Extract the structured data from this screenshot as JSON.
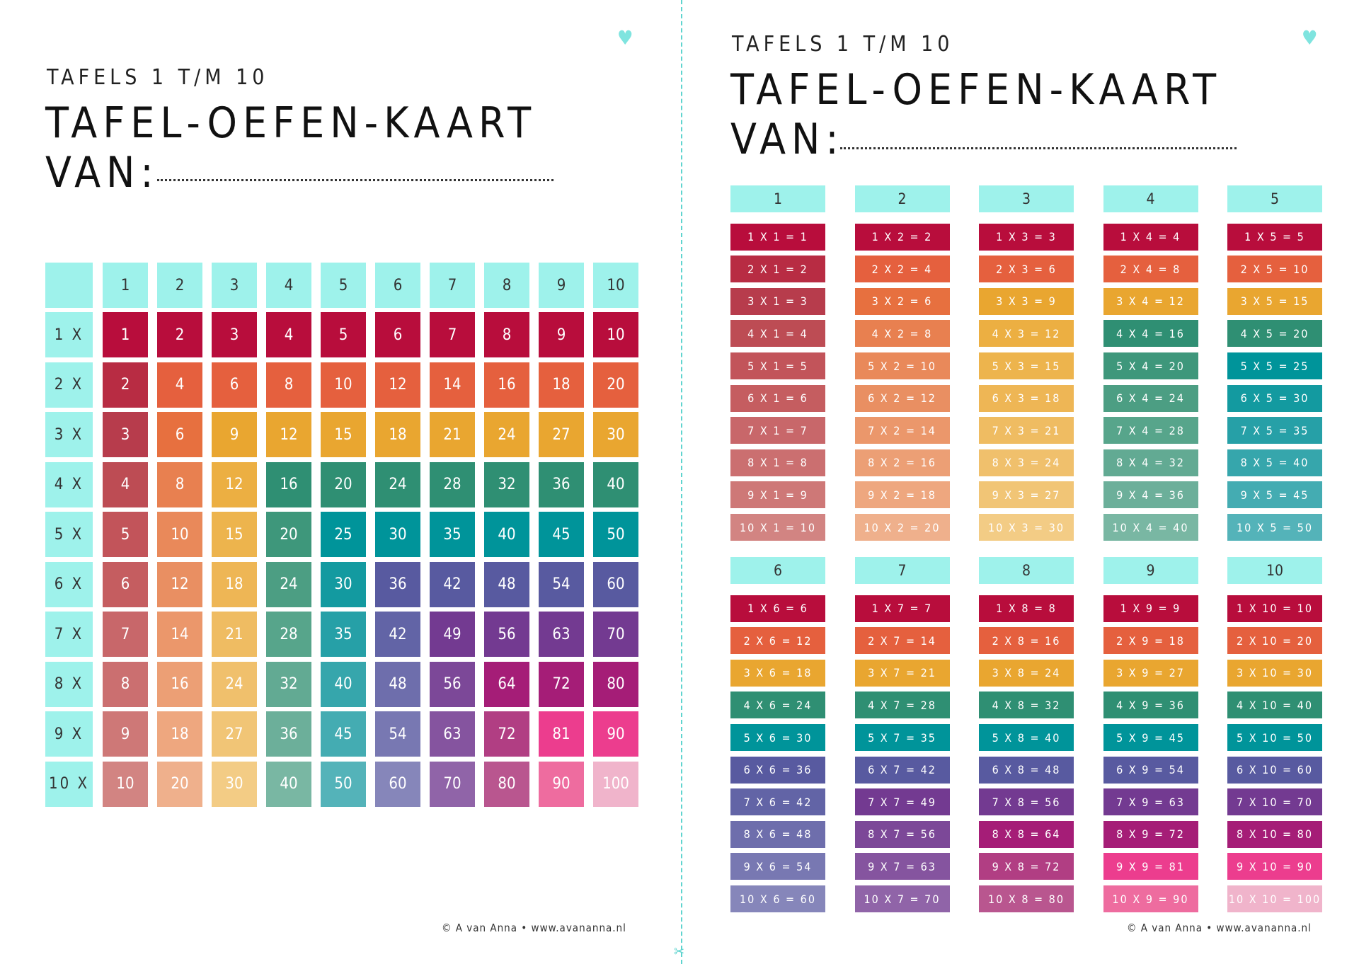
{
  "left": {
    "subtitle": "TAFELS 1 T/M 10",
    "title_line1": "TAFEL-OEFEN-KAART",
    "title_line2": "VAN:",
    "footer": "© A van Anna • www.avananna.nl",
    "icons": {
      "heart": "heart-icon"
    },
    "column_headers": [
      "1",
      "2",
      "3",
      "4",
      "5",
      "6",
      "7",
      "8",
      "9",
      "10"
    ],
    "row_headers": [
      "1 X",
      "2 X",
      "3 X",
      "4 X",
      "5 X",
      "6 X",
      "7 X",
      "8 X",
      "9 X",
      "10 X"
    ]
  },
  "right": {
    "subtitle": "TAFELS 1 T/M 10",
    "title_line1": "TAFEL-OEFEN-KAART",
    "title_line2": "VAN:",
    "footer": "© A van Anna • www.avananna.nl",
    "icons": {
      "heart": "heart-icon",
      "cut": "scissors-icon"
    }
  },
  "colors": {
    "header": "#9ef2eb",
    "cells": [
      [
        "#b80d3c",
        "#b80d3c",
        "#b80d3c",
        "#b80d3c",
        "#b80d3c",
        "#b80d3c",
        "#b80d3c",
        "#b80d3c",
        "#b80d3c",
        "#b80d3c"
      ],
      [
        "#b82c43",
        "#e5603e",
        "#e5603e",
        "#e5603e",
        "#e5603e",
        "#e5603e",
        "#e5603e",
        "#e5603e",
        "#e5603e",
        "#e5603e"
      ],
      [
        "#b73c4c",
        "#e7703f",
        "#e9a630",
        "#e9a630",
        "#e9a630",
        "#e9a630",
        "#e9a630",
        "#e9a630",
        "#e9a630",
        "#e9a630"
      ],
      [
        "#bd4c54",
        "#e88050",
        "#ecaf42",
        "#2f8f73",
        "#2f8f73",
        "#2f8f73",
        "#2f8f73",
        "#2f8f73",
        "#2f8f73",
        "#2f8f73"
      ],
      [
        "#c2545a",
        "#e9895a",
        "#edb44d",
        "#3e977b",
        "#00949a",
        "#00949a",
        "#00949a",
        "#00949a",
        "#00949a",
        "#00949a"
      ],
      [
        "#c55d60",
        "#e98f62",
        "#eeb655",
        "#4c9e83",
        "#139aa0",
        "#585aa0",
        "#585aa0",
        "#585aa0",
        "#585aa0",
        "#585aa0"
      ],
      [
        "#c8676a",
        "#eb976b",
        "#efbc62",
        "#57a58b",
        "#26a0a7",
        "#6264a6",
        "#733a91",
        "#733a91",
        "#733a91",
        "#733a91"
      ],
      [
        "#cb6f70",
        "#ec9f75",
        "#f0c06c",
        "#62aa93",
        "#36a6ac",
        "#6e6eac",
        "#7c4898",
        "#a51d77",
        "#a51d77",
        "#a51d77"
      ],
      [
        "#ce7877",
        "#eea77f",
        "#f1c576",
        "#6caf9a",
        "#44acb2",
        "#7878b2",
        "#85549f",
        "#b13e83",
        "#ec3d8e",
        "#ec3d8e"
      ],
      [
        "#d28482",
        "#efb08c",
        "#f3cc85",
        "#79b7a3",
        "#54b3b9",
        "#8686ba",
        "#9064a8",
        "#b9568f",
        "#ee6c9f",
        "#f0b4cb"
      ]
    ]
  }
}
